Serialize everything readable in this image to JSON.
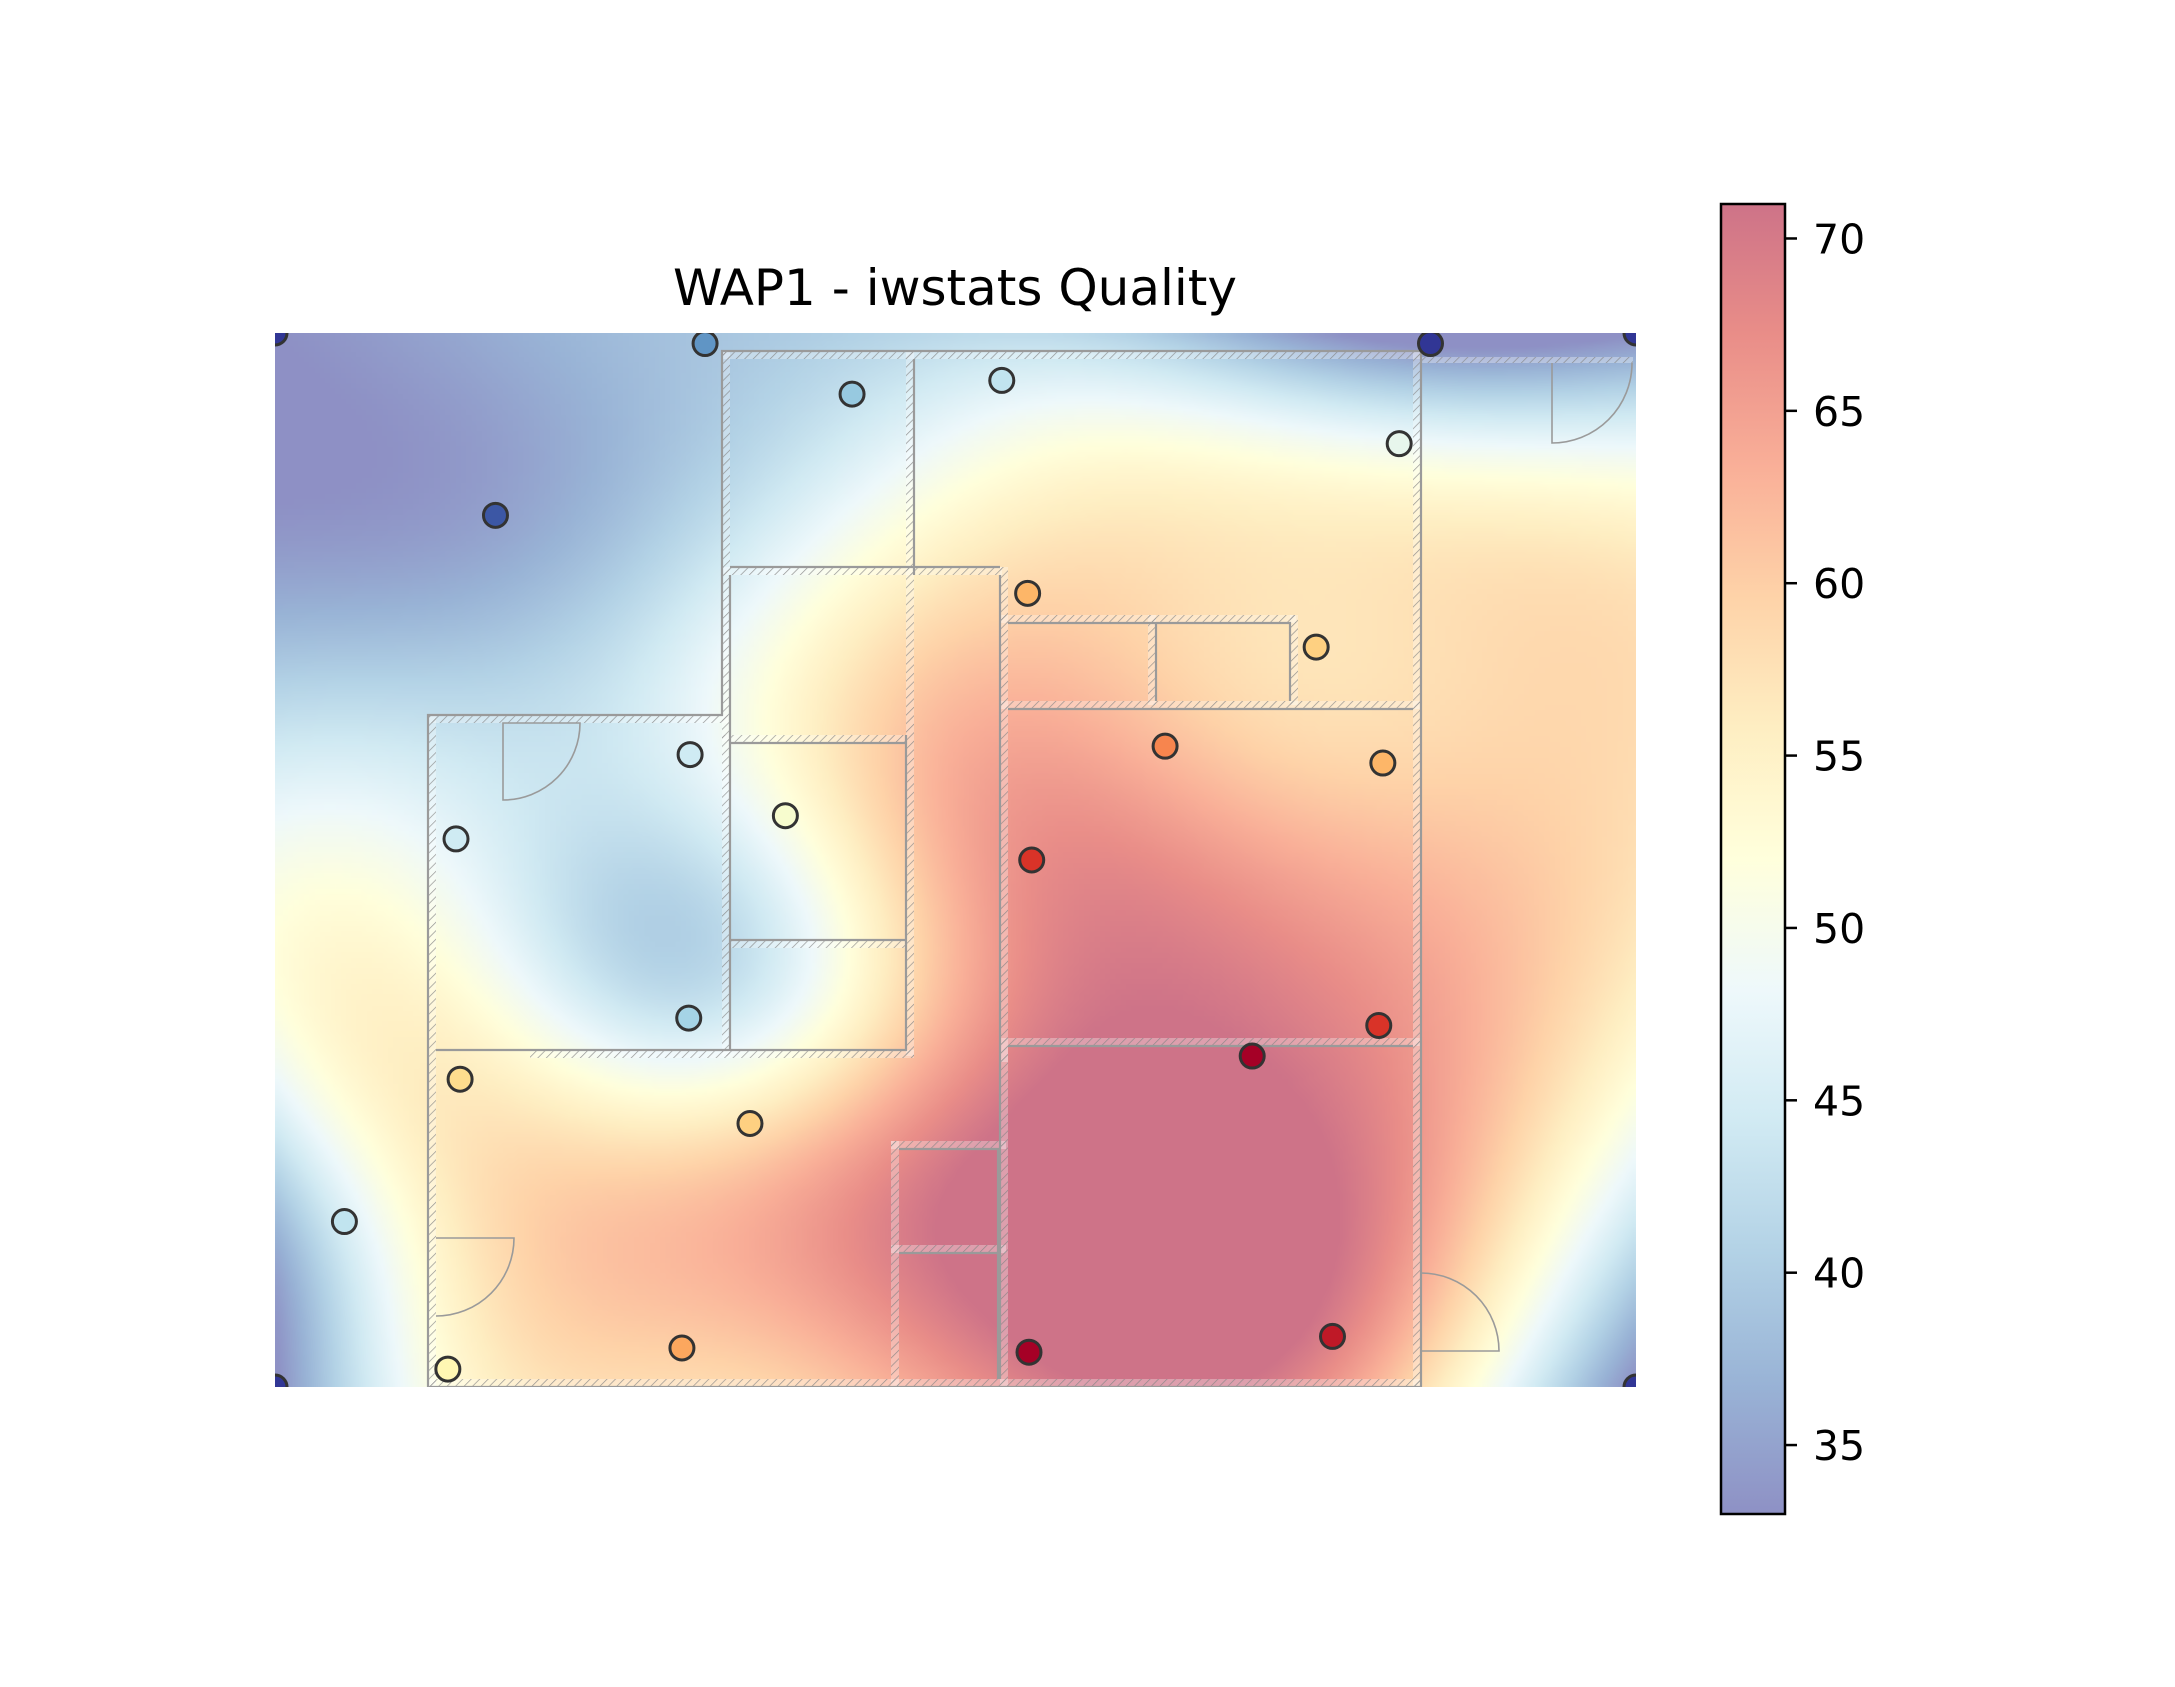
{
  "chart_data": {
    "type": "heatmap",
    "title": "WAP1 - iwstats Quality",
    "xlabel": "",
    "ylabel": "",
    "x_range": [
      0,
      1
    ],
    "y_range": [
      0,
      1
    ],
    "colorbar": {
      "min": 33,
      "max": 71,
      "ticks": [
        35,
        40,
        45,
        50,
        55,
        60,
        65,
        70
      ],
      "colormap": [
        "#313695",
        "#4575b4",
        "#74add1",
        "#abd9e9",
        "#e0f3f8",
        "#ffffbf",
        "#fee090",
        "#fdae61",
        "#f46d43",
        "#d73027",
        "#a50026"
      ]
    },
    "points": [
      {
        "x": 0.0,
        "y": 1.0,
        "value": 33
      },
      {
        "x": 0.316,
        "y": 0.99,
        "value": 39
      },
      {
        "x": 0.849,
        "y": 0.99,
        "value": 33
      },
      {
        "x": 1.0,
        "y": 1.0,
        "value": 33
      },
      {
        "x": 0.162,
        "y": 0.827,
        "value": 35
      },
      {
        "x": 0.424,
        "y": 0.942,
        "value": 43
      },
      {
        "x": 0.534,
        "y": 0.955,
        "value": 46
      },
      {
        "x": 0.826,
        "y": 0.895,
        "value": 49
      },
      {
        "x": 0.553,
        "y": 0.753,
        "value": 59
      },
      {
        "x": 0.765,
        "y": 0.702,
        "value": 57
      },
      {
        "x": 0.654,
        "y": 0.608,
        "value": 62
      },
      {
        "x": 0.814,
        "y": 0.592,
        "value": 59
      },
      {
        "x": 0.305,
        "y": 0.6,
        "value": 47
      },
      {
        "x": 0.375,
        "y": 0.542,
        "value": 51
      },
      {
        "x": 0.133,
        "y": 0.52,
        "value": 47
      },
      {
        "x": 0.556,
        "y": 0.5,
        "value": 67
      },
      {
        "x": 0.304,
        "y": 0.35,
        "value": 44
      },
      {
        "x": 0.811,
        "y": 0.343,
        "value": 67
      },
      {
        "x": 0.718,
        "y": 0.314,
        "value": 71
      },
      {
        "x": 0.136,
        "y": 0.292,
        "value": 56
      },
      {
        "x": 0.349,
        "y": 0.25,
        "value": 57
      },
      {
        "x": 0.051,
        "y": 0.157,
        "value": 46
      },
      {
        "x": 0.299,
        "y": 0.037,
        "value": 60
      },
      {
        "x": 0.554,
        "y": 0.033,
        "value": 71
      },
      {
        "x": 0.777,
        "y": 0.048,
        "value": 69
      },
      {
        "x": 0.127,
        "y": 0.017,
        "value": 53
      },
      {
        "x": 0.0,
        "y": 0.0,
        "value": 33
      },
      {
        "x": 1.0,
        "y": 0.0,
        "value": 33
      }
    ]
  }
}
